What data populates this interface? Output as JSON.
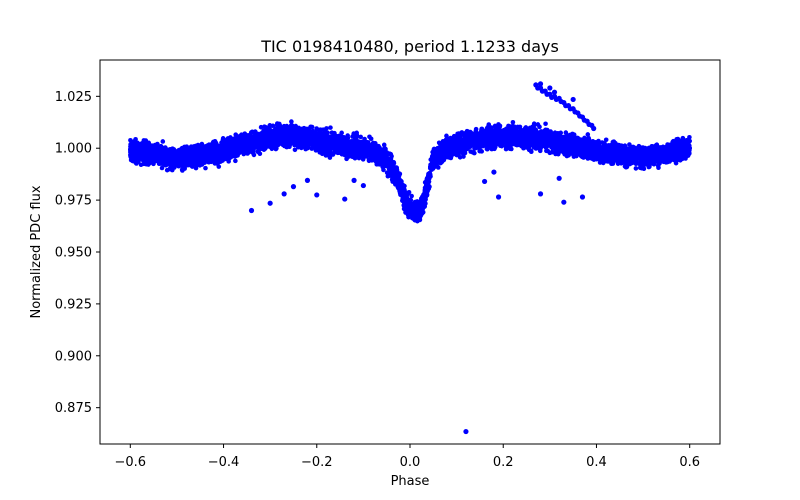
{
  "chart_data": {
    "type": "scatter",
    "title": "TIC 0198410480, period 1.1233 days",
    "xlabel": "Phase",
    "ylabel": "Normalized PDC flux",
    "xlim": [
      -0.665,
      0.665
    ],
    "ylim": [
      0.8575,
      1.0425
    ],
    "xticks": [
      -0.6,
      -0.4,
      -0.2,
      0.0,
      0.2,
      0.4,
      0.6
    ],
    "xtick_labels": [
      "−0.6",
      "−0.4",
      "−0.2",
      "0.0",
      "0.2",
      "0.4",
      "0.6"
    ],
    "yticks": [
      0.875,
      0.9,
      0.925,
      0.95,
      0.975,
      1.0,
      1.025
    ],
    "ytick_labels": [
      "0.875",
      "0.900",
      "0.925",
      "0.950",
      "0.975",
      "1.000",
      "1.025"
    ],
    "grid": false,
    "legend": "none",
    "marker_color": "#0000ff",
    "series": [
      {
        "x": [
          -0.6,
          -0.58,
          -0.55,
          -0.52,
          -0.5,
          -0.48,
          -0.45,
          -0.42,
          -0.4,
          -0.38,
          -0.35,
          -0.32,
          -0.3,
          -0.28,
          -0.25,
          -0.22,
          -0.2,
          -0.18,
          -0.15,
          -0.12,
          -0.1,
          -0.08,
          -0.05,
          -0.03,
          -0.02,
          -0.01,
          0.0,
          0.01,
          0.02,
          0.03,
          0.05,
          0.08,
          0.1,
          0.12,
          0.15,
          0.18,
          0.2,
          0.22,
          0.25,
          0.28,
          0.3,
          0.32,
          0.35,
          0.38,
          0.4,
          0.42,
          0.45,
          0.48,
          0.5,
          0.52,
          0.55,
          0.58,
          0.6
        ],
        "y": [
          0.9995,
          0.998,
          0.997,
          0.9955,
          0.995,
          0.9955,
          0.9965,
          0.9975,
          0.9985,
          1.0,
          1.002,
          1.004,
          1.005,
          1.006,
          1.0055,
          1.005,
          1.004,
          1.003,
          1.0015,
          1.0005,
          1.0,
          0.999,
          0.994,
          0.987,
          0.981,
          0.975,
          0.971,
          0.969,
          0.9695,
          0.975,
          0.995,
          1.0005,
          1.0015,
          1.003,
          1.004,
          1.005,
          1.006,
          1.0055,
          1.005,
          1.0045,
          1.004,
          1.0025,
          1.001,
          1.0,
          0.999,
          0.998,
          0.997,
          0.9965,
          0.996,
          0.9965,
          0.9975,
          0.999,
          1.0
        ]
      }
    ],
    "outliers": {
      "x": [
        -0.34,
        -0.3,
        -0.27,
        -0.25,
        -0.22,
        -0.2,
        -0.14,
        -0.12,
        -0.1,
        0.12,
        0.16,
        0.18,
        0.19,
        0.28,
        0.28,
        0.3,
        0.31,
        0.32,
        0.33,
        0.35,
        0.37
      ],
      "y": [
        0.97,
        0.9735,
        0.978,
        0.9815,
        0.9845,
        0.9775,
        0.9755,
        0.9845,
        0.982,
        0.8635,
        0.984,
        0.9885,
        0.9765,
        1.031,
        0.978,
        1.029,
        1.027,
        0.9855,
        0.974,
        1.0235,
        0.9765
      ]
    },
    "upper_excursion": {
      "x": [
        0.27,
        0.28,
        0.29,
        0.3,
        0.31,
        0.32,
        0.33,
        0.34,
        0.35,
        0.36,
        0.37,
        0.38,
        0.39
      ],
      "y": [
        1.0305,
        1.029,
        1.0275,
        1.026,
        1.025,
        1.024,
        1.022,
        1.0205,
        1.019,
        1.017,
        1.015,
        1.013,
        1.011
      ]
    }
  }
}
